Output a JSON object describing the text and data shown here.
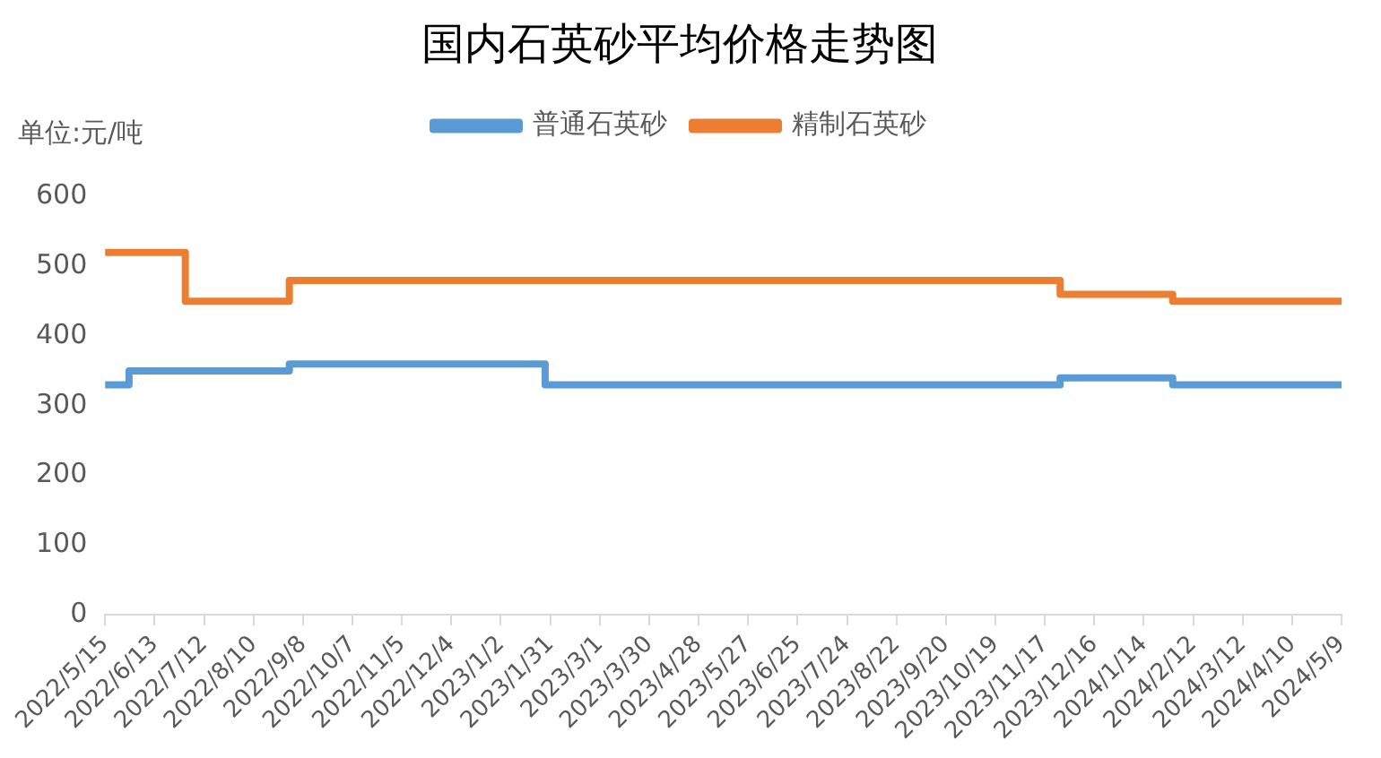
{
  "chart_data": {
    "type": "step",
    "title": "国内石英砂平均价格走势图",
    "ylabel": "单位:元/吨",
    "series": [
      {
        "name": "普通石英砂",
        "color": "#5b9bd5",
        "x": [
          "2022-05-15",
          "2022-05-29",
          "2022-08-31",
          "2023-01-28",
          "2023-11-26",
          "2024-01-31",
          "2024-05-09"
        ],
        "values": [
          330,
          350,
          360,
          330,
          340,
          330,
          330
        ]
      },
      {
        "name": "精制石英砂",
        "color": "#ed7d31",
        "x": [
          "2022-05-15",
          "2022-07-01",
          "2022-08-31",
          "2023-11-26",
          "2024-01-31",
          "2024-05-09"
        ],
        "values": [
          520,
          450,
          480,
          460,
          450,
          450
        ]
      }
    ],
    "xlim": [
      "2022-05-15",
      "2024-05-09"
    ],
    "xticks": [
      {
        "value": "2022-05-15",
        "label": "2022/5/15"
      },
      {
        "value": "2022-06-13",
        "label": "2022/6/13"
      },
      {
        "value": "2022-07-12",
        "label": "2022/7/12"
      },
      {
        "value": "2022-08-10",
        "label": "2022/8/10"
      },
      {
        "value": "2022-09-08",
        "label": "2022/9/8"
      },
      {
        "value": "2022-10-07",
        "label": "2022/10/7"
      },
      {
        "value": "2022-11-05",
        "label": "2022/11/5"
      },
      {
        "value": "2022-12-04",
        "label": "2022/12/4"
      },
      {
        "value": "2023-01-02",
        "label": "2023/1/2"
      },
      {
        "value": "2023-01-31",
        "label": "2023/1/31"
      },
      {
        "value": "2023-03-01",
        "label": "2023/3/1"
      },
      {
        "value": "2023-03-30",
        "label": "2023/3/30"
      },
      {
        "value": "2023-04-28",
        "label": "2023/4/28"
      },
      {
        "value": "2023-05-27",
        "label": "2023/5/27"
      },
      {
        "value": "2023-06-25",
        "label": "2023/6/25"
      },
      {
        "value": "2023-07-24",
        "label": "2023/7/24"
      },
      {
        "value": "2023-08-22",
        "label": "2023/8/22"
      },
      {
        "value": "2023-09-20",
        "label": "2023/9/20"
      },
      {
        "value": "2023-10-19",
        "label": "2023/10/19"
      },
      {
        "value": "2023-11-17",
        "label": "2023/11/17"
      },
      {
        "value": "2023-12-16",
        "label": "2023/12/16"
      },
      {
        "value": "2024-01-14",
        "label": "2024/1/14"
      },
      {
        "value": "2024-02-12",
        "label": "2024/2/12"
      },
      {
        "value": "2024-03-12",
        "label": "2024/3/12"
      },
      {
        "value": "2024-04-10",
        "label": "2024/4/10"
      },
      {
        "value": "2024-05-09",
        "label": "2024/5/9"
      }
    ],
    "ylim": [
      0,
      600
    ],
    "yticks": [
      0,
      100,
      200,
      300,
      400,
      500,
      600
    ],
    "grid": false,
    "legend": "top",
    "marker": "none",
    "line_style": "solid"
  }
}
